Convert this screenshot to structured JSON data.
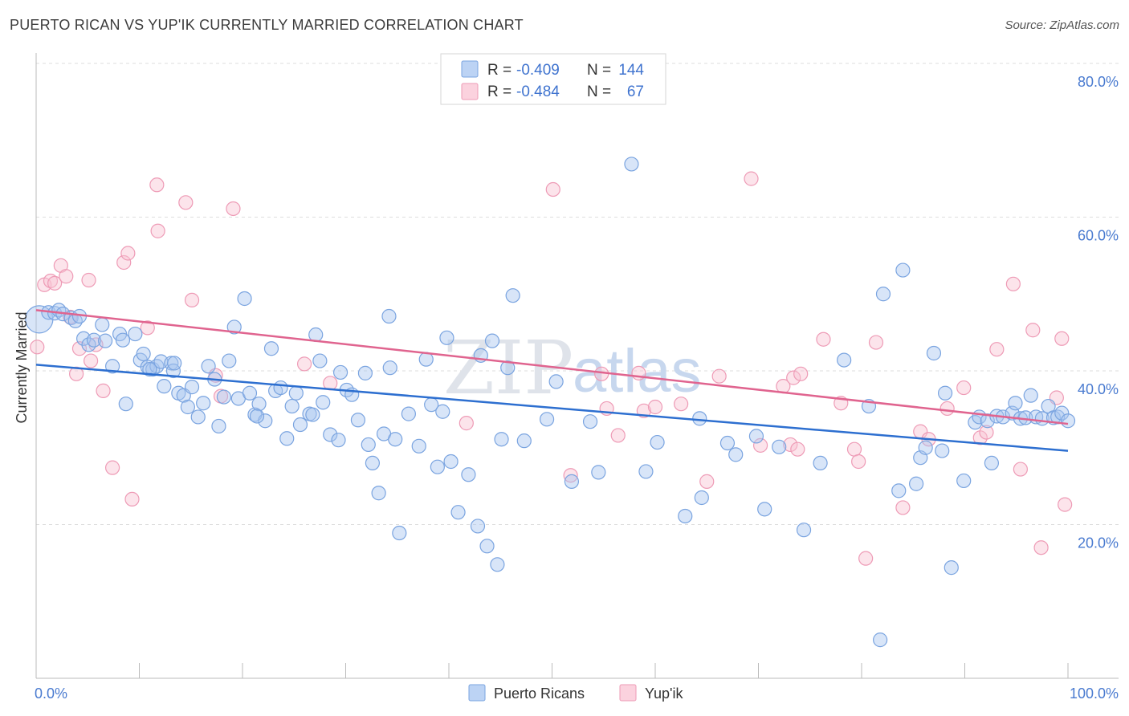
{
  "header": {
    "title": "PUERTO RICAN VS YUP'IK CURRENTLY MARRIED CORRELATION CHART",
    "source": "Source: ZipAtlas.com"
  },
  "watermark": {
    "part1": "ZIP",
    "part2": "atlas"
  },
  "legend_top": {
    "rows": [
      {
        "r_label": "R =",
        "r_value": "-0.409",
        "n_label": "N =",
        "n_value": "144",
        "color": "#8fb4ea"
      },
      {
        "r_label": "R =",
        "r_value": "-0.484",
        "n_label": "N =",
        "n_value": "67",
        "color": "#f3a7bf"
      }
    ]
  },
  "legend_bottom": {
    "items": [
      {
        "label": "Puerto Ricans",
        "color": "#8fb4ea"
      },
      {
        "label": "Yup'ik",
        "color": "#f3a7bf"
      }
    ]
  },
  "colors": {
    "blue_fill": "#a9c6f0",
    "blue_stroke": "#7aa4e0",
    "blue_line": "#2d6fd0",
    "pink_fill": "#f8c3d3",
    "pink_stroke": "#ee9bb6",
    "pink_line": "#e0648f",
    "grid": "#dddddd",
    "tick_text": "#4a7bd0"
  },
  "chart_data": {
    "type": "scatter",
    "title": "PUERTO RICAN VS YUP'IK CURRENTLY MARRIED CORRELATION CHART",
    "xlabel": "",
    "ylabel": "Currently Married",
    "xlim": [
      0,
      100
    ],
    "ylim": [
      0,
      80
    ],
    "x_tick_labels": [
      "0.0%",
      "100.0%"
    ],
    "y_ticks": [
      20,
      40,
      60,
      80
    ],
    "y_tick_labels": [
      "20.0%",
      "40.0%",
      "60.0%",
      "80.0%"
    ],
    "grid": "horizontal dashed",
    "legend_position": "top-center",
    "series": [
      {
        "name": "Puerto Ricans",
        "r": -0.409,
        "n": 144,
        "trend": {
          "x": [
            0,
            100
          ],
          "y": [
            40.8,
            29.6
          ]
        },
        "points": [
          [
            0.3,
            46.7
          ],
          [
            1.2,
            47.6
          ],
          [
            1.8,
            47.5
          ],
          [
            2.2,
            47.9
          ],
          [
            2.6,
            47.4
          ],
          [
            3.4,
            46.9
          ],
          [
            3.8,
            46.5
          ],
          [
            4.2,
            47.1
          ],
          [
            4.6,
            44.2
          ],
          [
            5.1,
            43.4
          ],
          [
            5.6,
            44.0
          ],
          [
            6.4,
            46.0
          ],
          [
            6.7,
            43.9
          ],
          [
            7.4,
            40.6
          ],
          [
            8.1,
            44.8
          ],
          [
            8.4,
            44.0
          ],
          [
            8.7,
            35.7
          ],
          [
            9.6,
            44.8
          ],
          [
            10.1,
            41.4
          ],
          [
            10.4,
            42.2
          ],
          [
            10.8,
            40.5
          ],
          [
            11.3,
            40.2
          ],
          [
            11.7,
            40.6
          ],
          [
            12.1,
            41.2
          ],
          [
            12.4,
            38.0
          ],
          [
            13.1,
            41.0
          ],
          [
            13.3,
            40.0
          ],
          [
            13.8,
            37.1
          ],
          [
            14.3,
            36.8
          ],
          [
            14.7,
            35.3
          ],
          [
            15.1,
            37.9
          ],
          [
            15.7,
            34.0
          ],
          [
            16.2,
            35.8
          ],
          [
            16.7,
            40.6
          ],
          [
            17.3,
            38.9
          ],
          [
            17.7,
            32.8
          ],
          [
            18.2,
            36.6
          ],
          [
            18.7,
            41.3
          ],
          [
            19.2,
            45.7
          ],
          [
            19.6,
            36.4
          ],
          [
            20.2,
            49.4
          ],
          [
            20.7,
            37.1
          ],
          [
            21.2,
            34.3
          ],
          [
            21.6,
            35.7
          ],
          [
            22.2,
            33.5
          ],
          [
            22.8,
            42.9
          ],
          [
            23.2,
            37.4
          ],
          [
            23.7,
            37.8
          ],
          [
            24.3,
            31.2
          ],
          [
            24.8,
            35.4
          ],
          [
            25.2,
            37.1
          ],
          [
            25.6,
            33.0
          ],
          [
            26.5,
            34.4
          ],
          [
            27.1,
            44.7
          ],
          [
            27.5,
            41.3
          ],
          [
            27.8,
            35.9
          ],
          [
            28.5,
            31.7
          ],
          [
            29.3,
            31.0
          ],
          [
            29.5,
            39.8
          ],
          [
            30.1,
            37.5
          ],
          [
            30.6,
            36.9
          ],
          [
            31.2,
            33.6
          ],
          [
            31.9,
            39.7
          ],
          [
            32.2,
            30.4
          ],
          [
            32.6,
            28.0
          ],
          [
            33.2,
            24.1
          ],
          [
            33.7,
            31.8
          ],
          [
            34.2,
            47.1
          ],
          [
            34.3,
            40.4
          ],
          [
            34.8,
            31.1
          ],
          [
            35.2,
            18.9
          ],
          [
            36.1,
            34.4
          ],
          [
            37.1,
            30.2
          ],
          [
            37.8,
            41.5
          ],
          [
            38.3,
            35.6
          ],
          [
            38.9,
            27.5
          ],
          [
            39.4,
            34.7
          ],
          [
            39.8,
            44.3
          ],
          [
            40.2,
            28.2
          ],
          [
            40.9,
            21.6
          ],
          [
            41.9,
            26.5
          ],
          [
            42.8,
            19.8
          ],
          [
            43.1,
            42.0
          ],
          [
            43.7,
            17.2
          ],
          [
            44.2,
            43.9
          ],
          [
            44.7,
            14.8
          ],
          [
            45.1,
            31.1
          ],
          [
            45.7,
            40.4
          ],
          [
            46.2,
            49.8
          ],
          [
            47.3,
            30.9
          ],
          [
            49.5,
            33.7
          ],
          [
            50.4,
            38.6
          ],
          [
            51.9,
            25.6
          ],
          [
            53.7,
            33.4
          ],
          [
            54.5,
            26.8
          ],
          [
            57.7,
            66.9
          ],
          [
            59.1,
            26.9
          ],
          [
            60.2,
            30.7
          ],
          [
            62.9,
            21.1
          ],
          [
            64.3,
            33.8
          ],
          [
            64.5,
            23.5
          ],
          [
            67.0,
            30.6
          ],
          [
            67.8,
            29.1
          ],
          [
            69.8,
            31.5
          ],
          [
            70.6,
            22.0
          ],
          [
            72.0,
            30.1
          ],
          [
            74.4,
            19.3
          ],
          [
            76.0,
            28.0
          ],
          [
            78.3,
            41.4
          ],
          [
            80.7,
            35.4
          ],
          [
            81.8,
            5.0
          ],
          [
            82.1,
            50.0
          ],
          [
            83.6,
            24.4
          ],
          [
            84.0,
            53.1
          ],
          [
            85.3,
            25.3
          ],
          [
            85.7,
            28.7
          ],
          [
            86.2,
            30.0
          ],
          [
            87.0,
            42.3
          ],
          [
            87.8,
            29.6
          ],
          [
            88.1,
            37.1
          ],
          [
            88.7,
            14.4
          ],
          [
            89.9,
            25.7
          ],
          [
            91.0,
            33.3
          ],
          [
            91.4,
            34.0
          ],
          [
            92.2,
            33.5
          ],
          [
            92.6,
            28.0
          ],
          [
            93.1,
            34.1
          ],
          [
            93.7,
            34.0
          ],
          [
            94.6,
            34.5
          ],
          [
            94.9,
            35.8
          ],
          [
            95.4,
            33.8
          ],
          [
            95.9,
            33.9
          ],
          [
            96.4,
            36.8
          ],
          [
            96.9,
            34.0
          ],
          [
            97.5,
            33.8
          ],
          [
            98.1,
            35.4
          ],
          [
            98.6,
            33.9
          ],
          [
            99.0,
            34.0
          ],
          [
            99.4,
            34.5
          ],
          [
            100.0,
            33.5
          ],
          [
            11.0,
            40.2
          ],
          [
            13.4,
            41.0
          ],
          [
            21.4,
            34.1
          ],
          [
            26.8,
            34.3
          ]
        ]
      },
      {
        "name": "Yup'ik",
        "r": -0.484,
        "n": 67,
        "trend": {
          "x": [
            0,
            100
          ],
          "y": [
            47.9,
            33.1
          ]
        },
        "points": [
          [
            0.1,
            43.1
          ],
          [
            0.8,
            51.2
          ],
          [
            1.4,
            51.7
          ],
          [
            1.8,
            51.4
          ],
          [
            2.4,
            53.7
          ],
          [
            2.9,
            52.3
          ],
          [
            3.3,
            47.0
          ],
          [
            3.9,
            39.6
          ],
          [
            4.2,
            42.9
          ],
          [
            5.1,
            51.8
          ],
          [
            5.3,
            41.3
          ],
          [
            5.8,
            43.4
          ],
          [
            6.5,
            37.4
          ],
          [
            7.4,
            27.4
          ],
          [
            8.5,
            54.1
          ],
          [
            8.9,
            55.3
          ],
          [
            9.3,
            23.3
          ],
          [
            10.8,
            45.6
          ],
          [
            11.7,
            64.2
          ],
          [
            11.8,
            58.2
          ],
          [
            14.5,
            61.9
          ],
          [
            15.1,
            49.2
          ],
          [
            17.4,
            39.4
          ],
          [
            17.9,
            36.7
          ],
          [
            19.1,
            61.1
          ],
          [
            26.0,
            40.9
          ],
          [
            28.5,
            38.4
          ],
          [
            41.7,
            33.2
          ],
          [
            50.1,
            63.6
          ],
          [
            51.8,
            26.4
          ],
          [
            54.8,
            39.6
          ],
          [
            55.3,
            35.1
          ],
          [
            56.4,
            31.6
          ],
          [
            58.4,
            39.7
          ],
          [
            58.9,
            34.8
          ],
          [
            60.0,
            35.3
          ],
          [
            62.5,
            35.7
          ],
          [
            65.0,
            25.6
          ],
          [
            66.2,
            39.3
          ],
          [
            69.3,
            65.0
          ],
          [
            70.2,
            30.3
          ],
          [
            72.4,
            38.0
          ],
          [
            73.1,
            30.4
          ],
          [
            73.4,
            39.1
          ],
          [
            73.8,
            29.8
          ],
          [
            74.1,
            39.6
          ],
          [
            76.3,
            44.1
          ],
          [
            78.0,
            35.8
          ],
          [
            79.3,
            29.8
          ],
          [
            79.7,
            28.2
          ],
          [
            80.4,
            15.6
          ],
          [
            81.4,
            43.7
          ],
          [
            84.0,
            22.2
          ],
          [
            85.7,
            32.1
          ],
          [
            86.5,
            31.1
          ],
          [
            88.3,
            35.1
          ],
          [
            89.9,
            37.8
          ],
          [
            91.5,
            31.3
          ],
          [
            92.1,
            32.0
          ],
          [
            93.1,
            42.8
          ],
          [
            94.7,
            51.3
          ],
          [
            95.4,
            27.2
          ],
          [
            96.6,
            45.3
          ],
          [
            97.4,
            17.0
          ],
          [
            98.9,
            36.5
          ],
          [
            99.4,
            44.2
          ],
          [
            99.7,
            22.6
          ]
        ]
      }
    ]
  }
}
